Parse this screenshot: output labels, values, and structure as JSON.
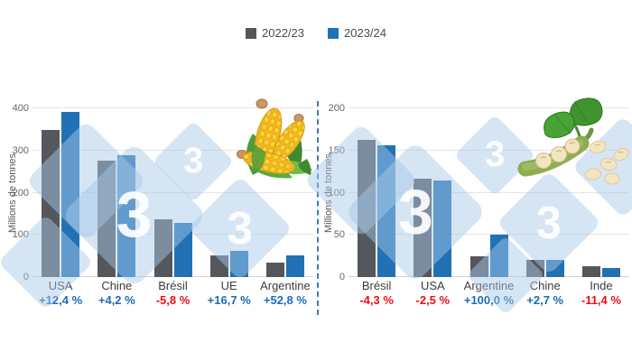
{
  "legend": {
    "items": [
      {
        "label": "2022/23",
        "color": "#54575C"
      },
      {
        "label": "2023/24",
        "color": "#2171B4"
      }
    ]
  },
  "colors": {
    "positive": "#1D6BB4",
    "negative": "#F10E13",
    "grid": "#E4E4E4",
    "axis_text": "#666666",
    "category_text": "#3C3C3C",
    "divider": "#3D7BBA",
    "watermark_fill": "#A8C8E8",
    "watermark_digit": "#FFFFFF"
  },
  "watermark": {
    "digit": "3"
  },
  "icons": {
    "left_chart": "corn-icon",
    "right_chart": "soybean-icon"
  },
  "chart_data": [
    {
      "type": "bar",
      "ylabel": "Millions de tonnes",
      "ylim": [
        0,
        400
      ],
      "yticks": [
        0,
        100,
        200,
        300,
        400
      ],
      "grid": true,
      "legend_position": "top-center",
      "categories": [
        "USA",
        "Chine",
        "Brésil",
        "UE",
        "Argentine"
      ],
      "series": [
        {
          "name": "2022/23",
          "color": "#54575C",
          "values": [
            349,
            277,
            136,
            52,
            34
          ]
        },
        {
          "name": "2023/24",
          "color": "#2171B4",
          "values": [
            392,
            289,
            128,
            61,
            52
          ]
        }
      ],
      "deltas": [
        {
          "text": "+12,4 %",
          "direction": "up"
        },
        {
          "text": "+4,2 %",
          "direction": "up"
        },
        {
          "text": "-5,8 %",
          "direction": "down"
        },
        {
          "text": "+16,7 %",
          "direction": "up"
        },
        {
          "text": "+52,8 %",
          "direction": "up"
        }
      ]
    },
    {
      "type": "bar",
      "ylabel": "Millions de tonnes",
      "ylim": [
        0,
        200
      ],
      "yticks": [
        0,
        50,
        100,
        150,
        200
      ],
      "grid": true,
      "legend_position": "top-center",
      "categories": [
        "Brésil",
        "USA",
        "Argentine",
        "Chine",
        "Inde"
      ],
      "series": [
        {
          "name": "2022/23",
          "color": "#54575C",
          "values": [
            163,
            117,
            25,
            20.3,
            12.4
          ]
        },
        {
          "name": "2023/24",
          "color": "#2171B4",
          "values": [
            156,
            114,
            50,
            20.8,
            11
          ]
        }
      ],
      "deltas": [
        {
          "text": "-4,3 %",
          "direction": "down"
        },
        {
          "text": "-2,5 %",
          "direction": "down"
        },
        {
          "text": "+100,0 %",
          "direction": "up"
        },
        {
          "text": "+2,7 %",
          "direction": "up"
        },
        {
          "text": "-11,4 %",
          "direction": "down"
        }
      ]
    }
  ]
}
